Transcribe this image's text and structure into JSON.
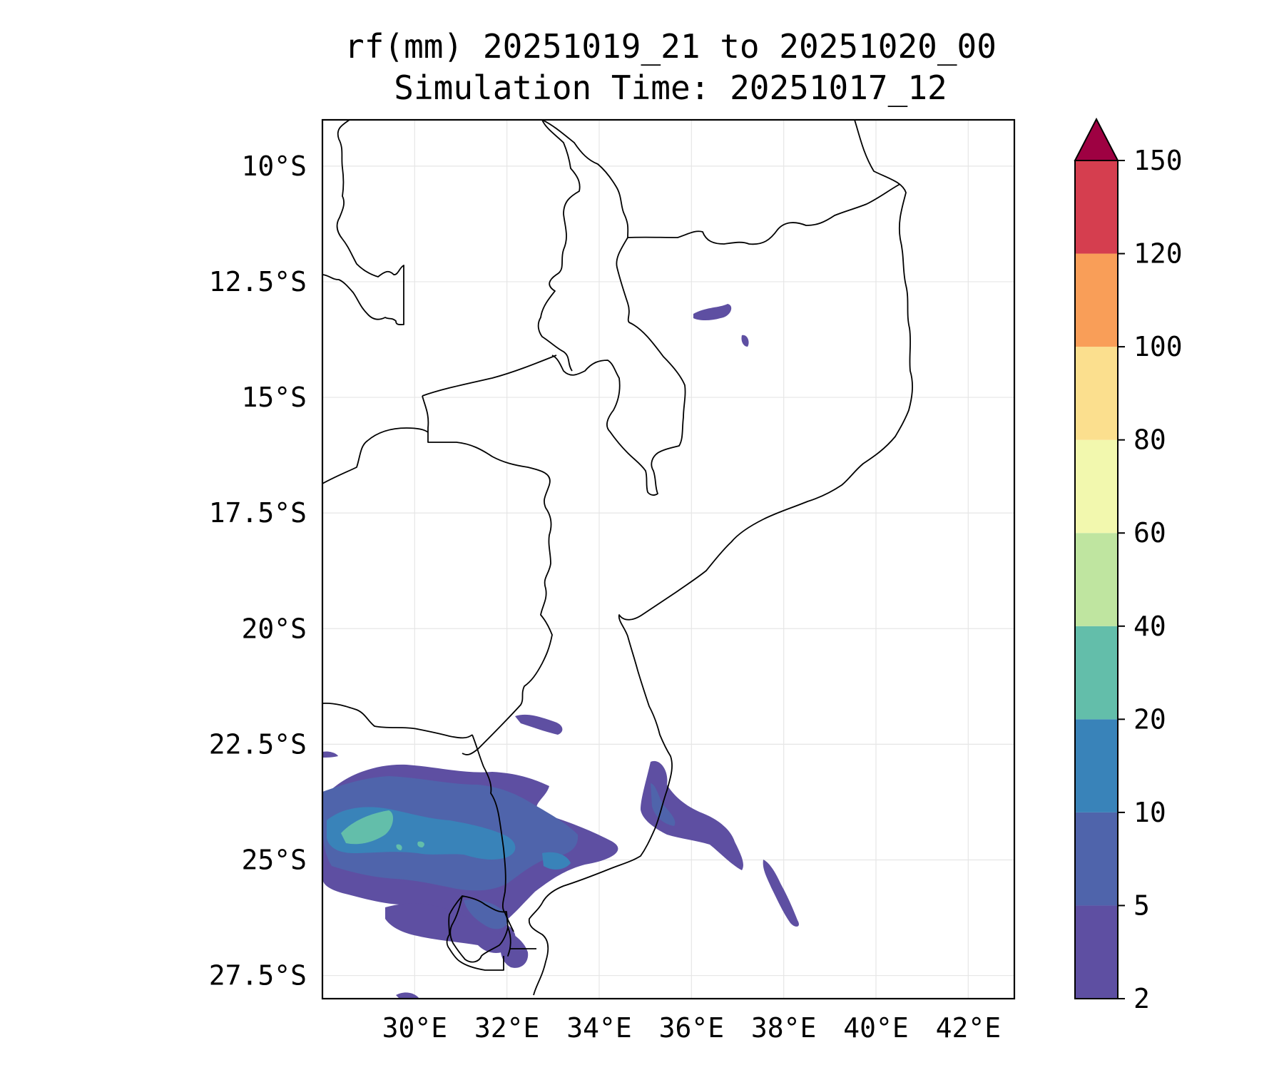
{
  "title": {
    "line1": "rf(mm) 20251019_21 to 20251020_00",
    "line2": "Simulation Time: 20251017_12"
  },
  "map": {
    "lon_range": [
      28,
      43
    ],
    "lat_range": [
      -28,
      -9
    ],
    "lon_ticks": [
      {
        "value": 30,
        "label": "30°E"
      },
      {
        "value": 32,
        "label": "32°E"
      },
      {
        "value": 34,
        "label": "34°E"
      },
      {
        "value": 36,
        "label": "36°E"
      },
      {
        "value": 38,
        "label": "38°E"
      },
      {
        "value": 40,
        "label": "40°E"
      },
      {
        "value": 42,
        "label": "42°E"
      }
    ],
    "lat_ticks": [
      {
        "value": -10,
        "label": "10°S"
      },
      {
        "value": -12.5,
        "label": "12.5°S"
      },
      {
        "value": -15,
        "label": "15°S"
      },
      {
        "value": -17.5,
        "label": "17.5°S"
      },
      {
        "value": -20,
        "label": "20°S"
      },
      {
        "value": -22.5,
        "label": "22.5°S"
      },
      {
        "value": -25,
        "label": "25°S"
      },
      {
        "value": -27.5,
        "label": "27.5°S"
      }
    ],
    "grid": true
  },
  "colorbar": {
    "extend": "max",
    "levels": [
      {
        "label": "2",
        "color": "#5e4fa2"
      },
      {
        "label": "5",
        "color": "#4f64ab"
      },
      {
        "label": "10",
        "color": "#3983b9"
      },
      {
        "label": "20",
        "color": "#63beaa"
      },
      {
        "label": "40",
        "color": "#bfe5a0"
      },
      {
        "label": "60",
        "color": "#f2f8ae"
      },
      {
        "label": "80",
        "color": "#fbdf8e"
      },
      {
        "label": "100",
        "color": "#f99e58"
      },
      {
        "label": "120",
        "color": "#d53e4f"
      },
      {
        "label": "150",
        "color": "#9e0142"
      }
    ]
  }
}
